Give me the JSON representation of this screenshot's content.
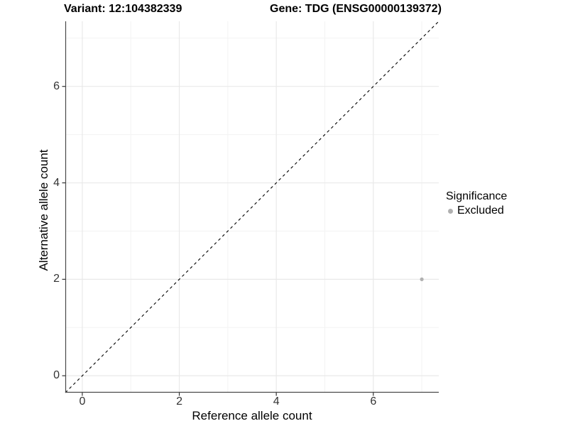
{
  "header": {
    "variant_title": "Variant: 12:104382339",
    "gene_title": "Gene: TDG (ENSG00000139372)"
  },
  "chart_data": {
    "type": "scatter",
    "xlabel": "Reference allele count",
    "ylabel": "Alternative allele count",
    "xlim": [
      -0.35,
      7.35
    ],
    "ylim": [
      -0.35,
      7.35
    ],
    "xticks": [
      0,
      2,
      4,
      6
    ],
    "yticks": [
      0,
      2,
      4,
      6
    ],
    "minor_gridlines": [
      1,
      3,
      5,
      7
    ],
    "grid": true,
    "points": [
      {
        "x": 7,
        "y": 2,
        "significance": "Excluded"
      }
    ],
    "identity_line": {
      "style": "dashed",
      "from": [
        -0.35,
        -0.35
      ],
      "to": [
        7.35,
        7.35
      ]
    },
    "legend": {
      "title": "Significance",
      "position": "right",
      "items": [
        {
          "label": "Excluded",
          "color": "#b0b0b0"
        }
      ]
    },
    "colors": {
      "point": "#b0b0b0",
      "grid_major": "#e9e9e9",
      "grid_minor": "#f3f3f3",
      "axis_line": "#4a4a4a",
      "tick_mark": "#333333",
      "tick_label": "#333333",
      "dashed_line": "#000000",
      "background": "#ffffff"
    }
  }
}
